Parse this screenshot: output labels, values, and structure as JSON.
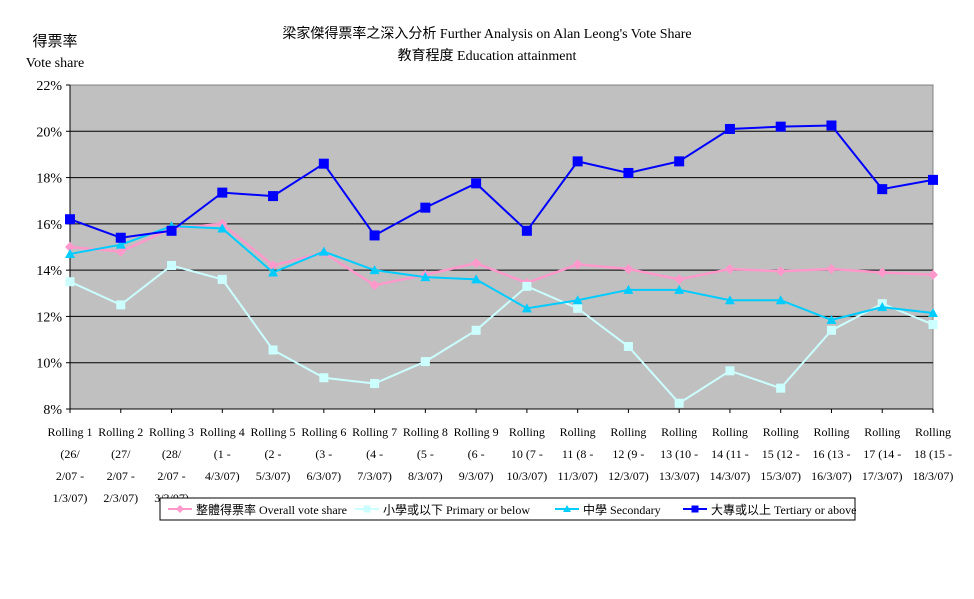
{
  "chart_data": {
    "type": "line",
    "title": "梁家傑得票率之深入分析 Further Analysis on Alan Leong's Vote Share",
    "subtitle": "教育程度 Education attainment",
    "ylabel_zh": "得票率",
    "ylabel": "Vote share",
    "xlabel": "",
    "ylim": [
      8,
      22
    ],
    "yticks": [
      8,
      10,
      12,
      14,
      16,
      18,
      20,
      22
    ],
    "ytick_labels": [
      "8%",
      "10%",
      "12%",
      "14%",
      "16%",
      "18%",
      "20%",
      "22%"
    ],
    "grid": true,
    "legend_position": "bottom",
    "categories": [
      [
        "Rolling 1",
        "(26/",
        "2/07 -",
        "1/3/07)"
      ],
      [
        "Rolling 2",
        "(27/",
        "2/07 -",
        "2/3/07)"
      ],
      [
        "Rolling 3",
        "(28/",
        "2/07 -",
        "3/3/07)"
      ],
      [
        "Rolling 4",
        "(1 -",
        "4/3/07)"
      ],
      [
        "Rolling 5",
        "(2 -",
        "5/3/07)"
      ],
      [
        "Rolling 6",
        "(3 -",
        "6/3/07)"
      ],
      [
        "Rolling 7",
        "(4 -",
        "7/3/07)"
      ],
      [
        "Rolling 8",
        "(5 -",
        "8/3/07)"
      ],
      [
        "Rolling 9",
        "(6 -",
        "9/3/07)"
      ],
      [
        "Rolling",
        "10 (7 -",
        "10/3/07)"
      ],
      [
        "Rolling",
        "11 (8 -",
        "11/3/07)"
      ],
      [
        "Rolling",
        "12 (9 -",
        "12/3/07)"
      ],
      [
        "Rolling",
        "13 (10 -",
        "13/3/07)"
      ],
      [
        "Rolling",
        "14 (11 -",
        "14/3/07)"
      ],
      [
        "Rolling",
        "15 (12 -",
        "15/3/07)"
      ],
      [
        "Rolling",
        "16 (13 -",
        "16/3/07)"
      ],
      [
        "Rolling",
        "17 (14 -",
        "17/3/07)"
      ],
      [
        "Rolling",
        "18 (15 -",
        "18/3/07)"
      ]
    ],
    "series": [
      {
        "name": "整體得票率 Overall vote share",
        "color": "#FF99CC",
        "marker": "diamond",
        "values": [
          15.0,
          14.8,
          15.8,
          16.0,
          14.2,
          14.75,
          13.35,
          13.8,
          14.3,
          13.45,
          14.25,
          14.05,
          13.6,
          14.05,
          13.95,
          14.05,
          13.9,
          13.8
        ]
      },
      {
        "name": "小學或以下 Primary or below",
        "color": "#CCFFFF",
        "marker": "square",
        "values": [
          13.5,
          12.5,
          14.2,
          13.6,
          10.55,
          9.35,
          9.1,
          10.05,
          11.4,
          13.3,
          12.35,
          10.7,
          8.25,
          9.65,
          8.9,
          11.4,
          12.55,
          11.65
        ]
      },
      {
        "name": "中學 Secondary",
        "color": "#00CCFF",
        "marker": "triangle",
        "values": [
          14.7,
          15.1,
          15.9,
          15.8,
          13.9,
          14.8,
          14.0,
          13.7,
          13.6,
          12.35,
          12.7,
          13.15,
          13.15,
          12.7,
          12.7,
          11.85,
          12.4,
          12.15
        ]
      },
      {
        "name": "大專或以上 Tertiary or above",
        "color": "#0000FF",
        "marker": "square",
        "values": [
          16.2,
          15.4,
          15.7,
          17.35,
          17.2,
          18.6,
          15.5,
          16.7,
          17.75,
          15.7,
          18.7,
          18.2,
          18.7,
          20.1,
          20.2,
          20.25,
          17.5,
          17.9
        ]
      }
    ]
  }
}
